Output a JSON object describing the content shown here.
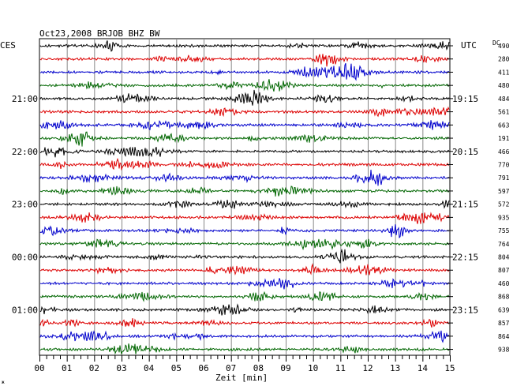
{
  "chart_data": {
    "type": "line",
    "title": "Oct23,2008   BRJOB BHZ BW",
    "left_tz": "CES",
    "right_tz": "UTC",
    "dc_label": "DC",
    "xlabel": "Zeit [min]",
    "xlim": [
      0,
      15
    ],
    "x_ticks": [
      "00",
      "01",
      "02",
      "03",
      "04",
      "05",
      "06",
      "07",
      "08",
      "09",
      "10",
      "11",
      "12",
      "13",
      "14",
      "15"
    ],
    "grid": true,
    "left_hour_labels": [
      "21:00",
      "22:00",
      "23:00",
      "00:00",
      "01:00"
    ],
    "right_hour_labels": [
      "19:15",
      "20:15",
      "21:15",
      "22:15",
      "23:15"
    ],
    "trace_colors": [
      "#000000",
      "#dd0000",
      "#0000cc",
      "#006600"
    ],
    "dc_values": [
      "490",
      "280",
      "411",
      "480",
      "484",
      "561",
      "663",
      "191",
      "466",
      "770",
      "791",
      "597",
      "572",
      "935",
      "755",
      "764",
      "804",
      "807",
      "460",
      "868",
      "639",
      "857",
      "864",
      "938"
    ],
    "corner_mark": "ж"
  }
}
